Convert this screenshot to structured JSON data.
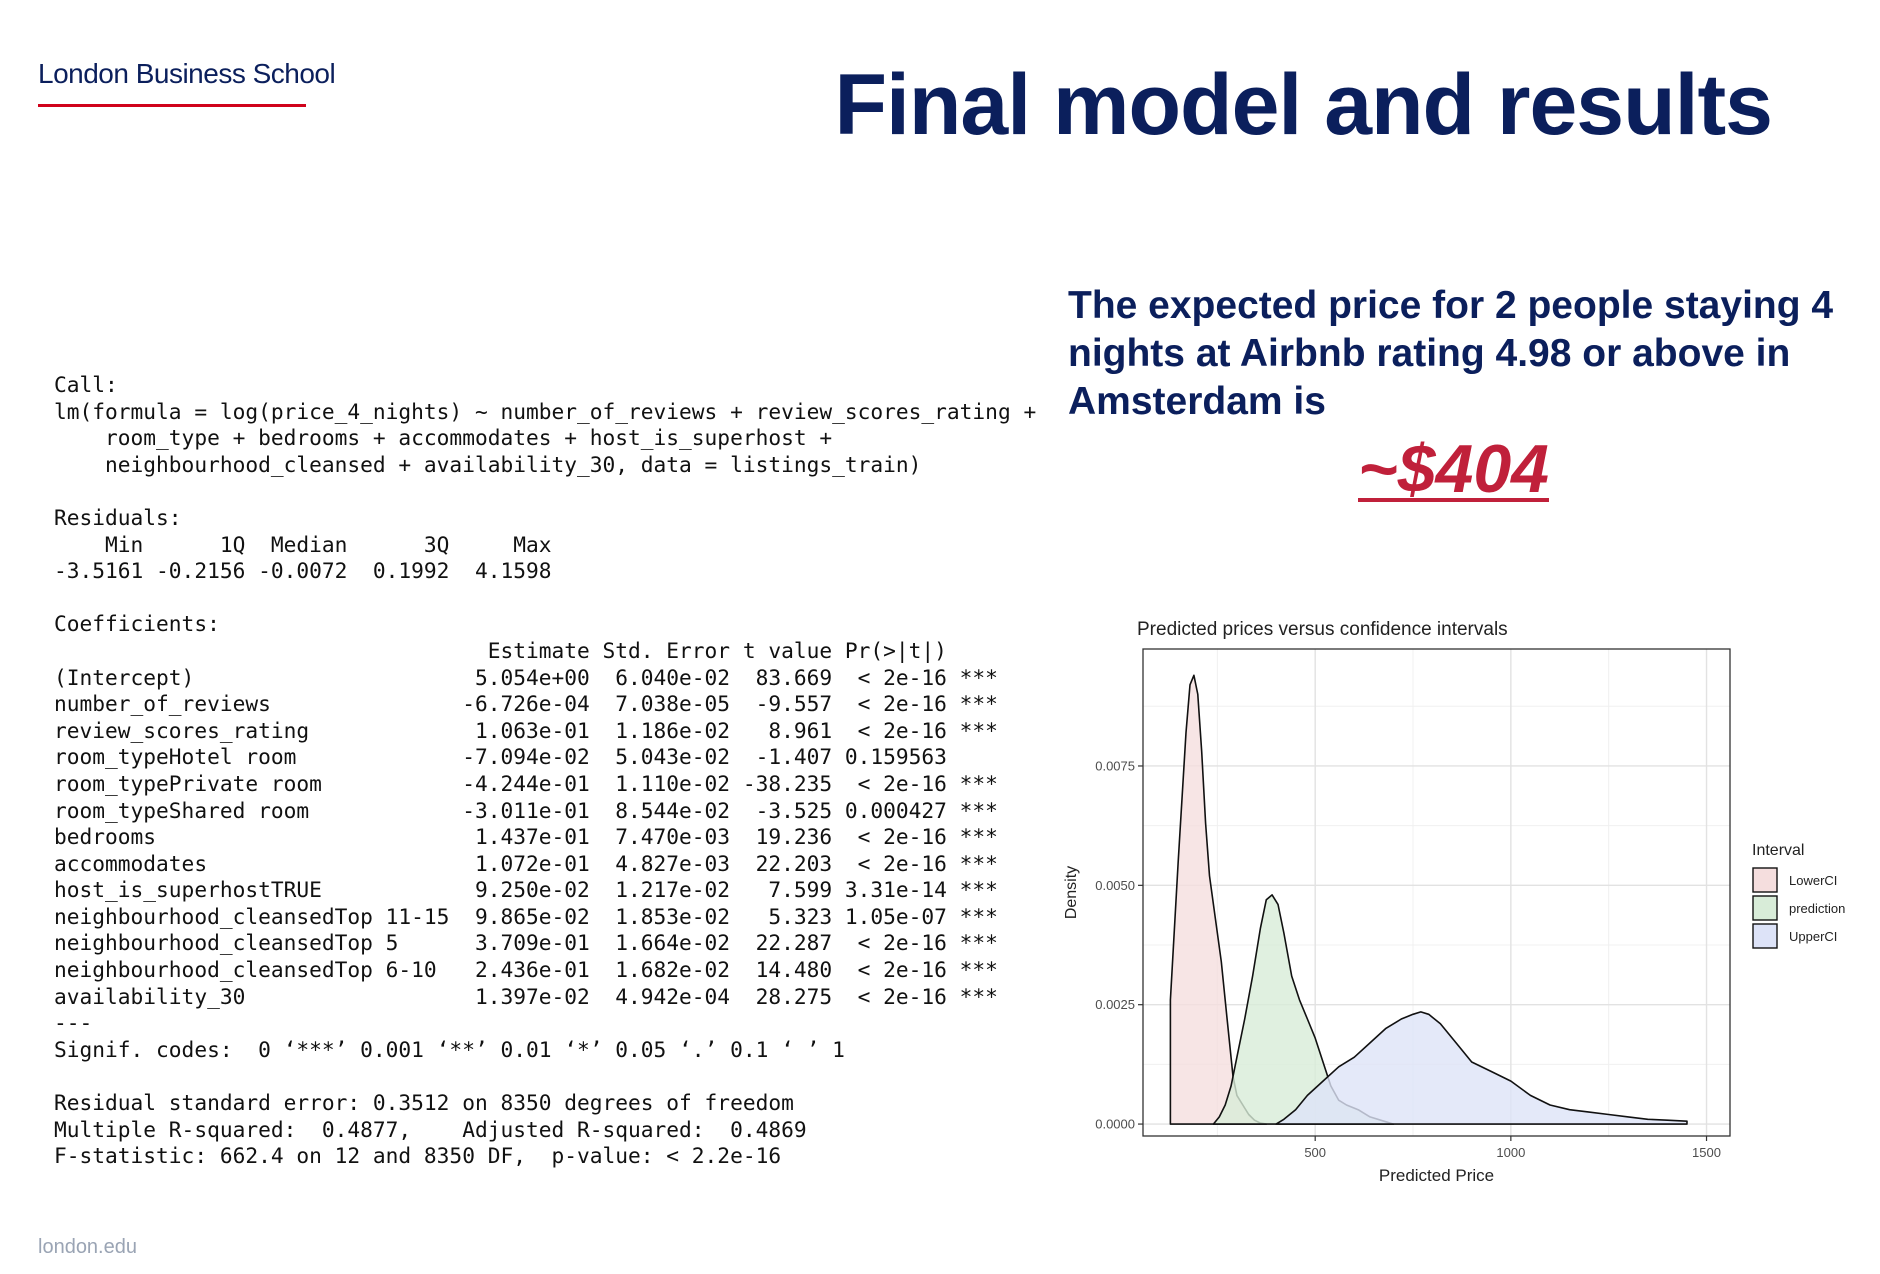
{
  "header": {
    "logo_text": "London Business School",
    "logo_rule_color": "#d0021b",
    "title": "Final model and results"
  },
  "r_output": {
    "lines": [
      "Call:",
      "lm(formula = log(price_4_nights) ~ number_of_reviews + review_scores_rating +",
      "    room_type + bedrooms + accommodates + host_is_superhost +",
      "    neighbourhood_cleansed + availability_30, data = listings_train)",
      "",
      "Residuals:",
      "    Min      1Q  Median      3Q     Max",
      "-3.5161 -0.2156 -0.0072  0.1992  4.1598",
      "",
      "Coefficients:",
      "                                  Estimate Std. Error t value Pr(>|t|)",
      "(Intercept)                      5.054e+00  6.040e-02  83.669  < 2e-16 ***",
      "number_of_reviews               -6.726e-04  7.038e-05  -9.557  < 2e-16 ***",
      "review_scores_rating             1.063e-01  1.186e-02   8.961  < 2e-16 ***",
      "room_typeHotel room             -7.094e-02  5.043e-02  -1.407 0.159563",
      "room_typePrivate room           -4.244e-01  1.110e-02 -38.235  < 2e-16 ***",
      "room_typeShared room            -3.011e-01  8.544e-02  -3.525 0.000427 ***",
      "bedrooms                         1.437e-01  7.470e-03  19.236  < 2e-16 ***",
      "accommodates                     1.072e-01  4.827e-03  22.203  < 2e-16 ***",
      "host_is_superhostTRUE            9.250e-02  1.217e-02   7.599 3.31e-14 ***",
      "neighbourhood_cleansedTop 11-15  9.865e-02  1.853e-02   5.323 1.05e-07 ***",
      "neighbourhood_cleansedTop 5      3.709e-01  1.664e-02  22.287  < 2e-16 ***",
      "neighbourhood_cleansedTop 6-10   2.436e-01  1.682e-02  14.480  < 2e-16 ***",
      "availability_30                  1.397e-02  4.942e-04  28.275  < 2e-16 ***",
      "---",
      "Signif. codes:  0 ‘***’ 0.001 ‘**’ 0.01 ‘*’ 0.05 ‘.’ 0.1 ‘ ’ 1",
      "",
      "Residual standard error: 0.3512 on 8350 degrees of freedom",
      "Multiple R-squared:  0.4877,    Adjusted R-squared:  0.4869",
      "F-statistic: 662.4 on 12 and 8350 DF,  p-value: < 2.2e-16"
    ]
  },
  "result": {
    "text": "The expected price for 2 people staying 4 nights at Airbnb rating 4.98 or above in Amsterdam is",
    "price": "~$404"
  },
  "footer": {
    "url": "london.edu"
  },
  "chart_data": {
    "type": "area",
    "title": "Predicted prices versus confidence intervals",
    "xlabel": "Predicted Price",
    "ylabel": "Density",
    "xlim": [
      60,
      1560
    ],
    "ylim": [
      -0.00025,
      0.00995
    ],
    "x_ticks": [
      500,
      1000,
      1500
    ],
    "x_tick_labels": [
      "500",
      "1000",
      "1500"
    ],
    "y_ticks": [
      0,
      0.0025,
      0.005,
      0.0075
    ],
    "y_tick_labels": [
      "0.0000",
      "0.0025",
      "0.0050",
      "0.0075"
    ],
    "grid": true,
    "legend_title": "Interval",
    "legend_position": "right",
    "series": [
      {
        "name": "LowerCI",
        "fill": "#f5dede",
        "points": [
          [
            130,
            0.0026
          ],
          [
            150,
            0.0055
          ],
          [
            170,
            0.0082
          ],
          [
            180,
            0.0092
          ],
          [
            190,
            0.0094
          ],
          [
            200,
            0.009
          ],
          [
            210,
            0.0078
          ],
          [
            220,
            0.0063
          ],
          [
            230,
            0.0052
          ],
          [
            245,
            0.0043
          ],
          [
            260,
            0.0034
          ],
          [
            275,
            0.0022
          ],
          [
            290,
            0.001
          ],
          [
            300,
            0.0006
          ],
          [
            315,
            0.0004
          ],
          [
            330,
            0.0002
          ],
          [
            345,
            8e-05
          ],
          [
            360,
            2e-05
          ],
          [
            375,
            0
          ]
        ]
      },
      {
        "name": "prediction",
        "fill": "#d8ecd8",
        "points": [
          [
            240,
            0
          ],
          [
            255,
            0.00015
          ],
          [
            270,
            0.0004
          ],
          [
            285,
            0.0008
          ],
          [
            300,
            0.0014
          ],
          [
            320,
            0.0022
          ],
          [
            340,
            0.0031
          ],
          [
            360,
            0.0041
          ],
          [
            375,
            0.0047
          ],
          [
            390,
            0.0048
          ],
          [
            405,
            0.0046
          ],
          [
            420,
            0.004
          ],
          [
            440,
            0.0031
          ],
          [
            460,
            0.0026
          ],
          [
            480,
            0.0022
          ],
          [
            500,
            0.0018
          ],
          [
            520,
            0.0013
          ],
          [
            540,
            0.0008
          ],
          [
            560,
            0.0005
          ],
          [
            580,
            0.0004
          ],
          [
            610,
            0.0003
          ],
          [
            640,
            0.00015
          ],
          [
            680,
            5e-05
          ],
          [
            700,
            0
          ]
        ]
      },
      {
        "name": "UpperCI",
        "fill": "#dde3f8",
        "points": [
          [
            400,
            0
          ],
          [
            420,
            0.0001
          ],
          [
            450,
            0.0003
          ],
          [
            480,
            0.0006
          ],
          [
            520,
            0.0009
          ],
          [
            560,
            0.0012
          ],
          [
            600,
            0.0014
          ],
          [
            640,
            0.0017
          ],
          [
            680,
            0.002
          ],
          [
            720,
            0.0022
          ],
          [
            750,
            0.0023
          ],
          [
            770,
            0.00235
          ],
          [
            790,
            0.0023
          ],
          [
            820,
            0.0021
          ],
          [
            860,
            0.0017
          ],
          [
            900,
            0.0013
          ],
          [
            950,
            0.0011
          ],
          [
            1000,
            0.0009
          ],
          [
            1050,
            0.0006
          ],
          [
            1100,
            0.0004
          ],
          [
            1150,
            0.0003
          ],
          [
            1200,
            0.00025
          ],
          [
            1250,
            0.0002
          ],
          [
            1300,
            0.00015
          ],
          [
            1350,
            0.0001
          ],
          [
            1400,
            8e-05
          ],
          [
            1450,
            6e-05
          ]
        ]
      }
    ]
  }
}
